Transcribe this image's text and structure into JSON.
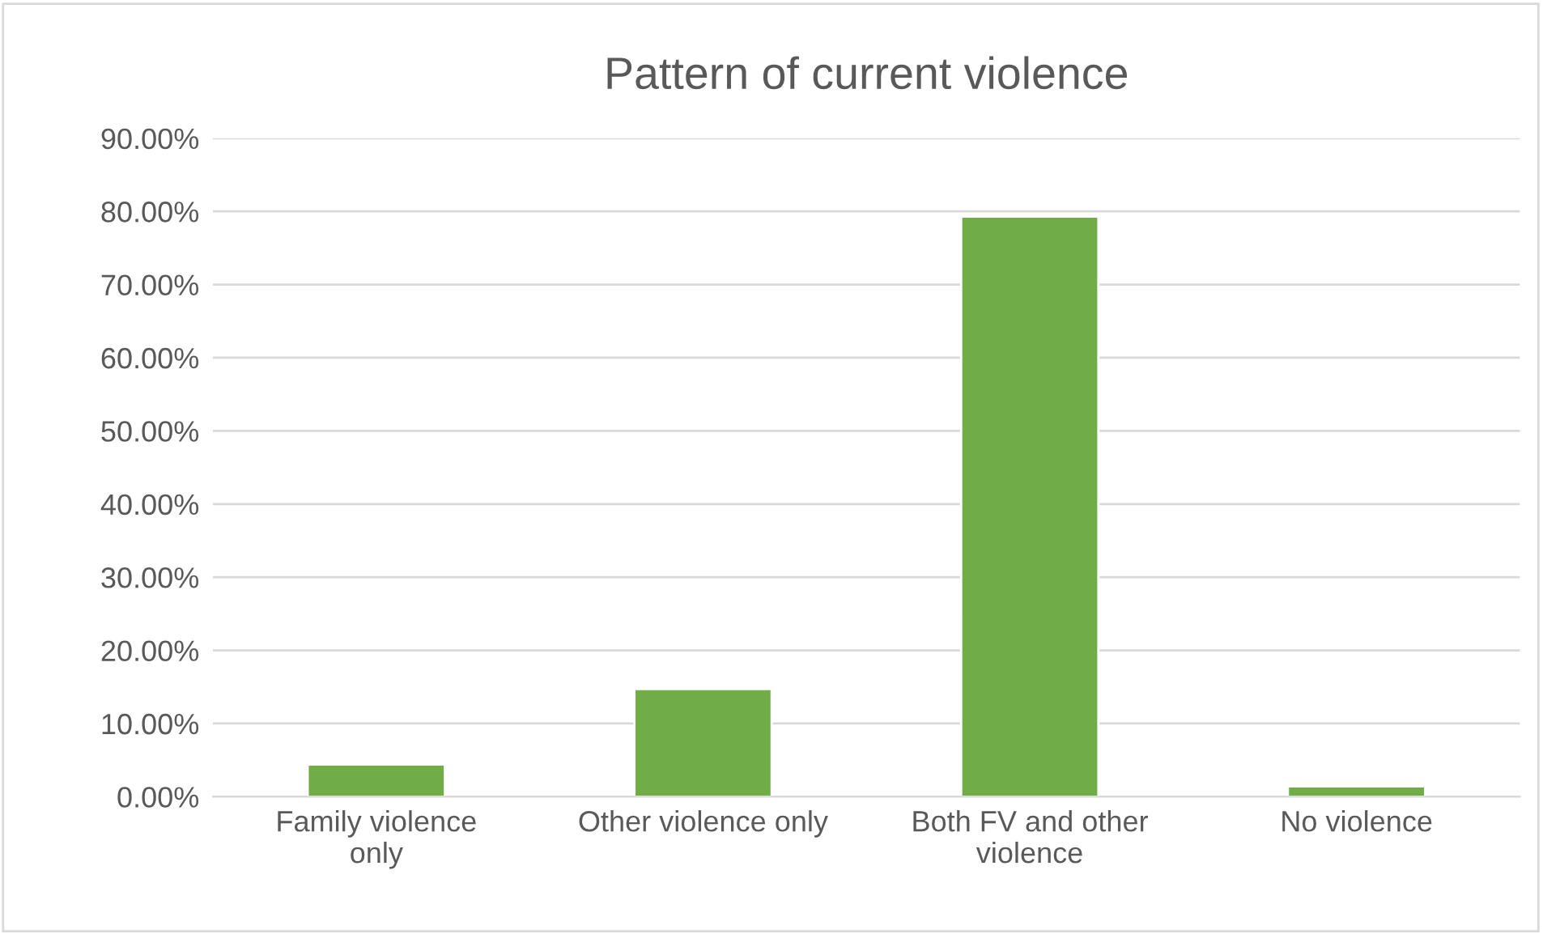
{
  "chart_data": {
    "type": "bar",
    "title": "Pattern of current violence",
    "categories": [
      "Family violence only",
      "Other violence only",
      "Both FV and other violence",
      "No violence"
    ],
    "values": [
      4.4,
      14.7,
      79.3,
      1.4
    ],
    "color": "#70ad47",
    "ylim": [
      0,
      90
    ],
    "yticks": [
      {
        "value": 0,
        "label": "0.00%"
      },
      {
        "value": 10,
        "label": "10.00%"
      },
      {
        "value": 20,
        "label": "20.00%"
      },
      {
        "value": 30,
        "label": "30.00%"
      },
      {
        "value": 40,
        "label": "40.00%"
      },
      {
        "value": 50,
        "label": "50.00%"
      },
      {
        "value": 60,
        "label": "60.00%"
      },
      {
        "value": 70,
        "label": "70.00%"
      },
      {
        "value": 80,
        "label": "80.00%"
      },
      {
        "value": 90,
        "label": "90.00%"
      }
    ],
    "grid": "y",
    "legend": false
  }
}
